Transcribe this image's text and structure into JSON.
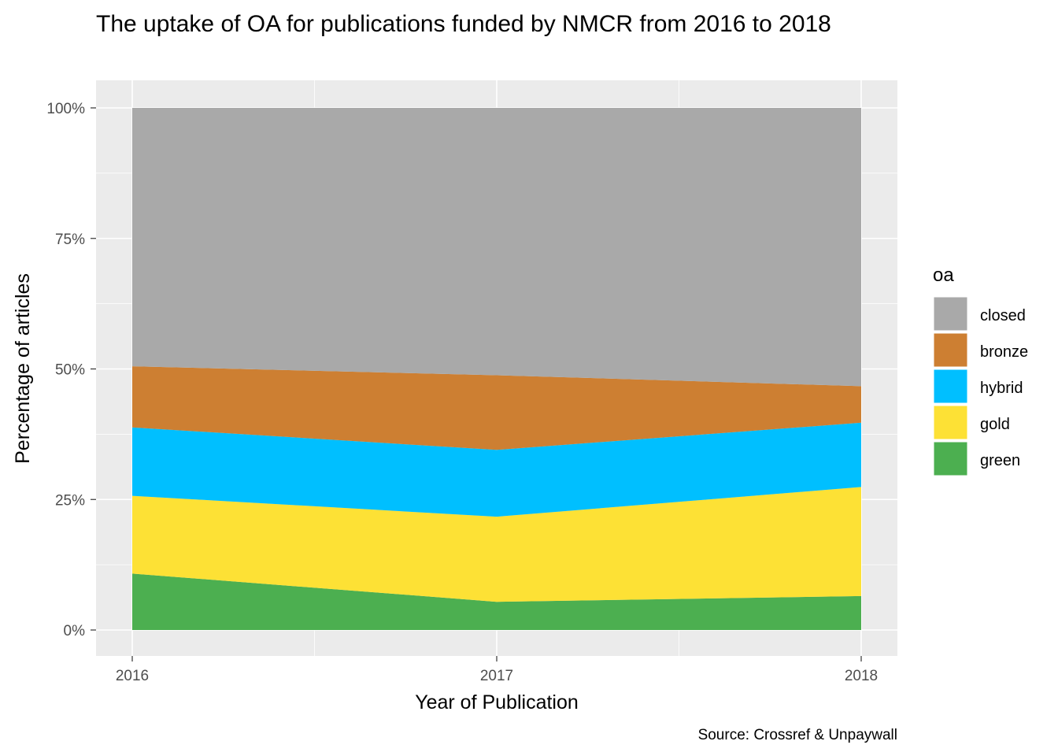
{
  "chart_data": {
    "type": "area",
    "stacked": true,
    "normalized": true,
    "title": "The uptake of OA for publications funded by NMCR from 2016 to 2018",
    "xlabel": "Year of Publication",
    "ylabel": "Percentage of articles",
    "caption": "Source: Crossref & Unpaywall",
    "x": [
      "2016",
      "2017",
      "2018"
    ],
    "ylim": [
      0,
      100
    ],
    "y_ticks": [
      "0%",
      "25%",
      "50%",
      "75%",
      "100%"
    ],
    "y_tick_values": [
      0,
      25,
      50,
      75,
      100
    ],
    "legend_title": "oa",
    "legend_position": "right",
    "grid": true,
    "series": [
      {
        "name": "green",
        "color": "#4caf50",
        "values": [
          10.8,
          5.4,
          6.5
        ]
      },
      {
        "name": "gold",
        "color": "#fde135",
        "values": [
          14.9,
          16.3,
          20.9
        ]
      },
      {
        "name": "hybrid",
        "color": "#00bfff",
        "values": [
          13.1,
          12.8,
          12.3
        ]
      },
      {
        "name": "bronze",
        "color": "#cd7f32",
        "values": [
          11.7,
          14.3,
          7.0
        ]
      },
      {
        "name": "closed",
        "color": "#a9a9a9",
        "values": [
          49.5,
          51.2,
          53.3
        ]
      }
    ]
  }
}
